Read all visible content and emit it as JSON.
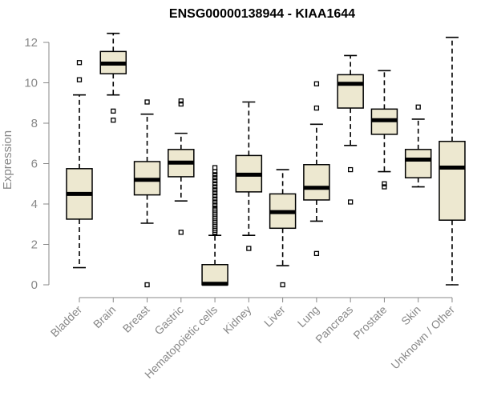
{
  "chart_data": {
    "type": "boxplot",
    "title": "ENSG00000138944 - KIAA1644",
    "xlabel": "",
    "ylabel": "Expression",
    "ylim": [
      0,
      12.4
    ],
    "yticks": [
      0,
      2,
      4,
      6,
      8,
      10,
      12
    ],
    "categories": [
      "Bladder",
      "Brain",
      "Breast",
      "Gastric",
      "Hematopoietic cells",
      "Kidney",
      "Liver",
      "Lung",
      "Pancreas",
      "Prostate",
      "Skin",
      "Unknown / Other"
    ],
    "series": [
      {
        "name": "Bladder",
        "whisker_low": 0.85,
        "q1": 3.25,
        "median": 4.5,
        "q3": 5.75,
        "whisker_high": 9.4,
        "outliers": [
          10.15,
          11.0
        ]
      },
      {
        "name": "Brain",
        "whisker_low": 9.4,
        "q1": 10.45,
        "median": 10.95,
        "q3": 11.55,
        "whisker_high": 12.45,
        "outliers": [
          8.15,
          8.6
        ]
      },
      {
        "name": "Breast",
        "whisker_low": 3.05,
        "q1": 4.45,
        "median": 5.2,
        "q3": 6.1,
        "whisker_high": 8.45,
        "outliers": [
          0.0,
          9.05
        ]
      },
      {
        "name": "Gastric",
        "whisker_low": 4.15,
        "q1": 5.35,
        "median": 6.05,
        "q3": 6.7,
        "whisker_high": 7.5,
        "outliers": [
          2.6,
          8.95,
          9.1
        ]
      },
      {
        "name": "Hematopoietic cells",
        "whisker_low": 0.0,
        "q1": 0.0,
        "median": 0.05,
        "q3": 1.0,
        "whisker_high": 2.45,
        "outliers": [
          2.6,
          2.7,
          2.8,
          2.9,
          3.0,
          3.1,
          3.2,
          3.3,
          3.4,
          3.5,
          3.6,
          3.7,
          3.8,
          3.95,
          4.1,
          4.25,
          4.4,
          4.55,
          4.7,
          4.85,
          5.0,
          5.15,
          5.3,
          5.45,
          5.6,
          5.8
        ]
      },
      {
        "name": "Kidney",
        "whisker_low": 2.45,
        "q1": 4.6,
        "median": 5.45,
        "q3": 6.4,
        "whisker_high": 9.05,
        "outliers": [
          1.8
        ]
      },
      {
        "name": "Liver",
        "whisker_low": 0.95,
        "q1": 2.8,
        "median": 3.6,
        "q3": 4.5,
        "whisker_high": 5.7,
        "outliers": [
          0.0
        ]
      },
      {
        "name": "Lung",
        "whisker_low": 3.15,
        "q1": 4.2,
        "median": 4.8,
        "q3": 5.95,
        "whisker_high": 7.95,
        "outliers": [
          1.55,
          8.75,
          9.95
        ]
      },
      {
        "name": "Pancreas",
        "whisker_low": 6.9,
        "q1": 8.75,
        "median": 9.95,
        "q3": 10.4,
        "whisker_high": 11.35,
        "outliers": [
          4.1,
          5.7
        ]
      },
      {
        "name": "Prostate",
        "whisker_low": 5.6,
        "q1": 7.45,
        "median": 8.15,
        "q3": 8.7,
        "whisker_high": 10.6,
        "outliers": [
          4.85,
          5.0
        ]
      },
      {
        "name": "Skin",
        "whisker_low": 4.85,
        "q1": 5.3,
        "median": 6.2,
        "q3": 6.7,
        "whisker_high": 8.2,
        "outliers": [
          8.8
        ]
      },
      {
        "name": "Unknown / Other",
        "whisker_low": 0.0,
        "q1": 3.2,
        "median": 5.8,
        "q3": 7.1,
        "whisker_high": 12.25,
        "outliers": []
      }
    ],
    "box_fill": "#ede8d0",
    "grid": false,
    "legend": "none"
  }
}
